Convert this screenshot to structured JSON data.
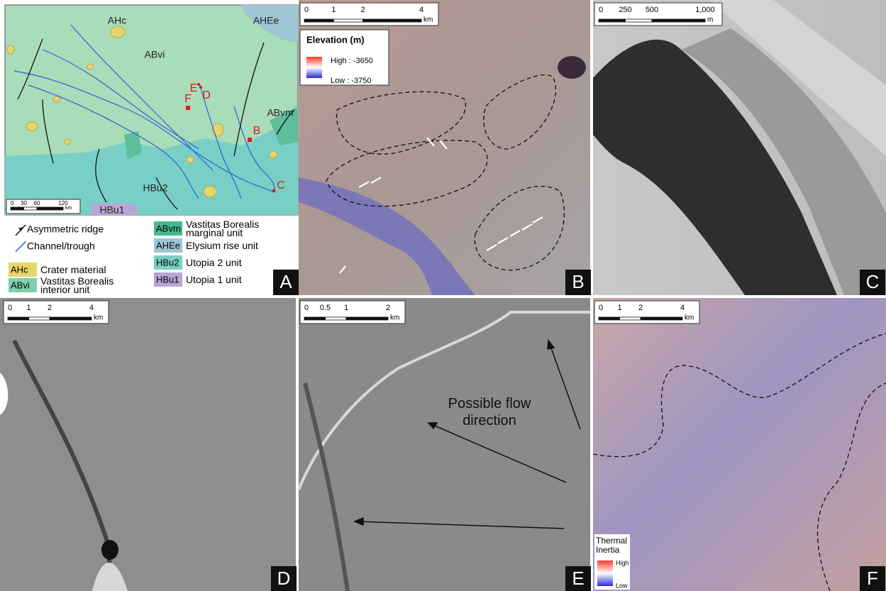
{
  "panels": [
    {
      "letter": "A",
      "map_labels": [
        "AHc",
        "AHEe",
        "ABvi",
        "E",
        "D",
        "F",
        "B",
        "C",
        "ABvm",
        "HBu2",
        "HBu1"
      ],
      "scale": {
        "ticks": [
          "0",
          "30",
          "60",
          "120"
        ],
        "unit": "km"
      }
    },
    {
      "letter": "B",
      "scale": {
        "ticks": [
          "0",
          "1",
          "2",
          "4"
        ],
        "unit": "km"
      },
      "legend": {
        "title": "Elevation (m)",
        "high": "High : -3650",
        "low": "Low : -3750"
      }
    },
    {
      "letter": "C",
      "scale": {
        "ticks": [
          "0",
          "250",
          "500",
          "1,000"
        ],
        "unit": "m"
      }
    },
    {
      "letter": "D",
      "scale": {
        "ticks": [
          "0",
          "1",
          "2",
          "4"
        ],
        "unit": "km"
      }
    },
    {
      "letter": "E",
      "scale": {
        "ticks": [
          "0",
          "0.5",
          "1",
          "2"
        ],
        "unit": "km"
      },
      "annotation": [
        "Possible flow",
        "direction"
      ]
    },
    {
      "letter": "F",
      "scale": {
        "ticks": [
          "0",
          "1",
          "2",
          "4"
        ],
        "unit": "km"
      },
      "legend": {
        "title": [
          "Thermal",
          "Inertia"
        ],
        "high": "High",
        "low": "Low"
      }
    }
  ],
  "legend": {
    "symbols": [
      "Asymmetric ridge",
      "Channel/trough"
    ],
    "units": [
      {
        "code": "AHc",
        "label": [
          "Crater material"
        ]
      },
      {
        "code": "ABvi",
        "label": [
          "Vastitas Borealis",
          "interior unit"
        ]
      },
      {
        "code": "ABvm",
        "label": [
          "Vastitas Borealis",
          "marginal unit"
        ]
      },
      {
        "code": "AHEe",
        "label": [
          "Elysium rise unit"
        ]
      },
      {
        "code": "HBu2",
        "label": [
          "Utopia 2 unit"
        ]
      },
      {
        "code": "HBu1",
        "label": [
          "Utopia 1 unit"
        ]
      }
    ]
  }
}
